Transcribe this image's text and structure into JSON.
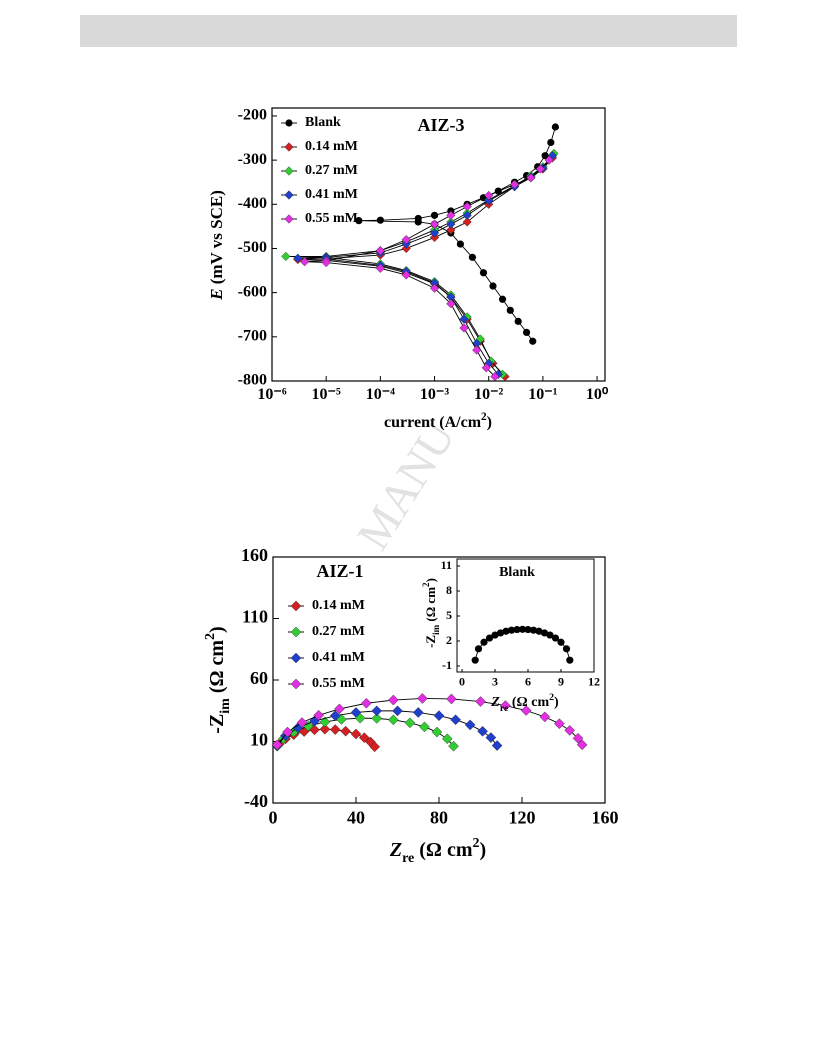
{
  "watermark": "MANU",
  "chart_data": [
    {
      "type": "line",
      "title": "AIZ-3",
      "log_x": true,
      "xlabel": [
        "current (A/cm",
        "2",
        ")"
      ],
      "xlabel_style": [
        "normal",
        "sup",
        "normal"
      ],
      "ylabel": [
        "E",
        " (mV vs SCE)"
      ],
      "ylabel_style": [
        "italic",
        "normal"
      ],
      "xlim": [
        1e-06,
        1.4
      ],
      "ylim": [
        -800,
        -182
      ],
      "xticks": [
        {
          "value": 1e-06,
          "label": "10⁻⁶"
        },
        {
          "value": 1e-05,
          "label": "10⁻⁵"
        },
        {
          "value": 0.0001,
          "label": "10⁻⁴"
        },
        {
          "value": 0.001,
          "label": "10⁻³"
        },
        {
          "value": 0.01,
          "label": "10⁻²"
        },
        {
          "value": 0.1,
          "label": "10⁻¹"
        },
        {
          "value": 1,
          "label": "10⁰"
        }
      ],
      "yticks": [
        -800,
        -700,
        -600,
        -500,
        -400,
        -300,
        -200
      ],
      "line_color": "#000000",
      "legend": "top-left",
      "series": [
        {
          "name": "Blank",
          "color": "#000000",
          "marker": "circle",
          "x": [
            0.17,
            0.14,
            0.11,
            0.08,
            0.05,
            0.03,
            0.015,
            0.008,
            0.004,
            0.002,
            0.001,
            0.0005,
            0.0001,
            4e-05,
            0.0005,
            0.001,
            0.002,
            0.003,
            0.005,
            0.008,
            0.012,
            0.018,
            0.025,
            0.035,
            0.05,
            0.065
          ],
          "values": [
            -225,
            -260,
            -290,
            -315,
            -335,
            -350,
            -370,
            -385,
            -400,
            -415,
            -425,
            -432,
            -436,
            -437,
            -440,
            -445,
            -465,
            -490,
            -520,
            -555,
            -585,
            -615,
            -640,
            -665,
            -690,
            -710
          ]
        },
        {
          "name": "0.14 mM",
          "color": "#d42020",
          "marker": "diamond",
          "x": [
            0.15,
            0.1,
            0.06,
            0.03,
            0.01,
            0.004,
            0.002,
            0.001,
            0.0003,
            0.0001,
            1e-05,
            3e-06,
            1e-05,
            0.0001,
            0.0003,
            0.001,
            0.002,
            0.004,
            0.007,
            0.012,
            0.02
          ],
          "values": [
            -295,
            -320,
            -340,
            -360,
            -400,
            -440,
            -458,
            -475,
            -500,
            -515,
            -523,
            -525,
            -527,
            -540,
            -555,
            -580,
            -610,
            -660,
            -710,
            -760,
            -790
          ]
        },
        {
          "name": "0.27 mM",
          "color": "#33cc33",
          "marker": "diamond",
          "x": [
            0.16,
            0.1,
            0.06,
            0.03,
            0.01,
            0.004,
            0.002,
            0.001,
            0.0003,
            0.0001,
            1e-05,
            1.8e-06,
            1e-05,
            0.0001,
            0.0003,
            0.001,
            0.002,
            0.004,
            0.007,
            0.011,
            0.018
          ],
          "values": [
            -285,
            -315,
            -335,
            -358,
            -390,
            -420,
            -440,
            -458,
            -485,
            -505,
            -518,
            -518,
            -520,
            -535,
            -550,
            -575,
            -605,
            -655,
            -705,
            -755,
            -785
          ]
        },
        {
          "name": "0.41 mM",
          "color": "#1f3fcc",
          "marker": "diamond",
          "x": [
            0.15,
            0.1,
            0.06,
            0.03,
            0.01,
            0.004,
            0.002,
            0.001,
            0.0003,
            0.0001,
            1e-05,
            3e-06,
            1e-05,
            0.0001,
            0.0003,
            0.001,
            0.002,
            0.0035,
            0.006,
            0.01,
            0.015
          ],
          "values": [
            -290,
            -318,
            -338,
            -360,
            -392,
            -425,
            -445,
            -465,
            -490,
            -510,
            -520,
            -522,
            -524,
            -538,
            -552,
            -578,
            -610,
            -660,
            -715,
            -760,
            -785
          ]
        },
        {
          "name": "0.55 mM",
          "color": "#e030e0",
          "marker": "diamond",
          "x": [
            0.13,
            0.09,
            0.06,
            0.03,
            0.01,
            0.004,
            0.002,
            0.001,
            0.0003,
            0.0001,
            1e-05,
            4e-06,
            1e-05,
            0.0001,
            0.0003,
            0.001,
            0.002,
            0.0035,
            0.006,
            0.009,
            0.013
          ],
          "values": [
            -300,
            -320,
            -340,
            -355,
            -380,
            -405,
            -425,
            -445,
            -480,
            -505,
            -528,
            -530,
            -532,
            -545,
            -560,
            -590,
            -625,
            -680,
            -730,
            -770,
            -790
          ]
        }
      ]
    },
    {
      "type": "line",
      "title": "AIZ-1",
      "xlabel": [
        "Z",
        "re",
        " (Ω cm",
        "2",
        ")"
      ],
      "xlabel_style": [
        "italic",
        "sub",
        "normal",
        "sup",
        "normal"
      ],
      "ylabel": [
        "-Z",
        "im",
        " (Ω cm",
        "2",
        ")"
      ],
      "ylabel_style": [
        "normal",
        "sub",
        "normal",
        "sup",
        "normal"
      ],
      "xlim": [
        0,
        160
      ],
      "ylim": [
        -40,
        160
      ],
      "xticks": [
        0,
        40,
        80,
        120,
        160
      ],
      "yticks": [
        -40,
        10,
        60,
        110,
        160
      ],
      "line_color": "#000000",
      "legend": "top-left",
      "series": [
        {
          "name": "0.14 mM",
          "color": "#d42020",
          "marker": "diamond",
          "x": [
            3,
            6,
            10,
            15,
            20,
            25,
            30,
            35,
            40,
            44,
            47,
            49
          ],
          "values": [
            7.9,
            12.1,
            15.5,
            18.1,
            19.5,
            20,
            19.7,
            18.4,
            16.1,
            13.1,
            9.6,
            5.7
          ]
        },
        {
          "name": "0.27 mM",
          "color": "#33cc33",
          "marker": "diamond",
          "x": [
            2,
            5,
            10,
            17,
            25,
            33,
            42,
            50,
            58,
            66,
            73,
            79,
            84,
            87
          ],
          "values": [
            6.2,
            12.2,
            17.7,
            22.5,
            25.9,
            28,
            29,
            28.8,
            27.6,
            25.2,
            21.9,
            17.7,
            12.2,
            6.2
          ]
        },
        {
          "name": "0.41 mM",
          "color": "#1f3fcc",
          "marker": "diamond",
          "x": [
            2,
            6,
            12,
            20,
            30,
            40,
            50,
            60,
            70,
            80,
            88,
            95,
            101,
            105,
            108
          ],
          "values": [
            6.7,
            14.7,
            21.2,
            26.6,
            31,
            33.6,
            34.9,
            34.9,
            33.6,
            31,
            27.7,
            23.5,
            18.3,
            13.2,
            6.7
          ]
        },
        {
          "name": "0.55 mM",
          "color": "#e030e0",
          "marker": "diamond",
          "x": [
            2,
            7,
            14,
            22,
            32,
            45,
            58,
            72,
            86,
            100,
            112,
            122,
            131,
            138,
            143,
            147,
            149
          ],
          "values": [
            7.3,
            17.7,
            25.4,
            31.3,
            36.5,
            41.1,
            43.7,
            45,
            44.6,
            42.5,
            39.2,
            35.2,
            30,
            24.5,
            19,
            12.6,
            7.3
          ]
        }
      ]
    },
    {
      "type": "line",
      "title": "Blank",
      "xlabel": [
        "Z",
        "re",
        " (Ω cm",
        "2",
        ")"
      ],
      "xlabel_style": [
        "italic",
        "sub",
        "normal",
        "sup",
        "normal"
      ],
      "ylabel": [
        "-Z",
        "im",
        " (Ω cm",
        "2",
        ")"
      ],
      "ylabel_style": [
        "normal",
        "sub",
        "normal",
        "sup",
        "normal"
      ],
      "xlim": [
        0,
        12
      ],
      "ylim": [
        -1,
        11
      ],
      "xticks": [
        0,
        3,
        6,
        9,
        12
      ],
      "yticks": [
        -1,
        2,
        5,
        8,
        11
      ],
      "line_color": "#000000",
      "series": [
        {
          "color": "#000000",
          "marker": "circle",
          "x": [
            1.2,
            1.5,
            2,
            2.5,
            3,
            3.5,
            4,
            4.5,
            5,
            5.5,
            6,
            6.5,
            7,
            7.5,
            8,
            8.5,
            9,
            9.5,
            9.8
          ],
          "values": [
            -0.3,
            1.06,
            1.85,
            2.35,
            2.71,
            2.97,
            3.17,
            3.3,
            3.37,
            3.4,
            3.37,
            3.3,
            3.17,
            2.97,
            2.71,
            2.35,
            1.85,
            1.06,
            -0.3
          ]
        }
      ]
    }
  ]
}
